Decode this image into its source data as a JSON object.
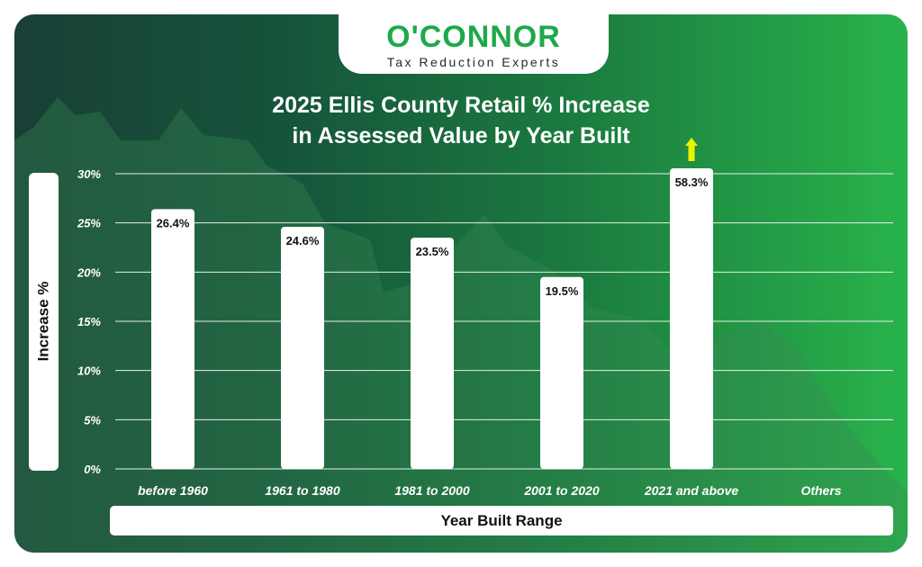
{
  "logo": {
    "name": "O'CONNOR",
    "tagline": "Tax Reduction Experts"
  },
  "colors": {
    "brand_green": "#1fa84a",
    "bar_fill": "#ffffff",
    "arrow": "#eef200",
    "grid": "#e6f2e8"
  },
  "chart_data": {
    "type": "bar",
    "title_line1": "2025 Ellis County Retail % Increase",
    "title_line2": "in Assessed Value by Year Built",
    "xlabel": "Year Built Range",
    "ylabel": "Increase %",
    "categories": [
      "before 1960",
      "1961 to 1980",
      "1981 to 2000",
      "2001 to 2020",
      "2021 and above",
      "Others"
    ],
    "values": [
      26.4,
      24.6,
      23.5,
      19.5,
      58.3,
      null
    ],
    "value_labels": [
      "26.4%",
      "24.6%",
      "23.5%",
      "19.5%",
      "58.3%",
      ""
    ],
    "yticks": [
      0,
      5,
      10,
      15,
      20,
      25,
      30
    ],
    "ytick_labels": [
      "0%",
      "5%",
      "10%",
      "15%",
      "20%",
      "25%",
      "30%"
    ],
    "ylim": [
      0,
      30
    ],
    "clipped_bars": [
      4
    ],
    "grid": true
  }
}
